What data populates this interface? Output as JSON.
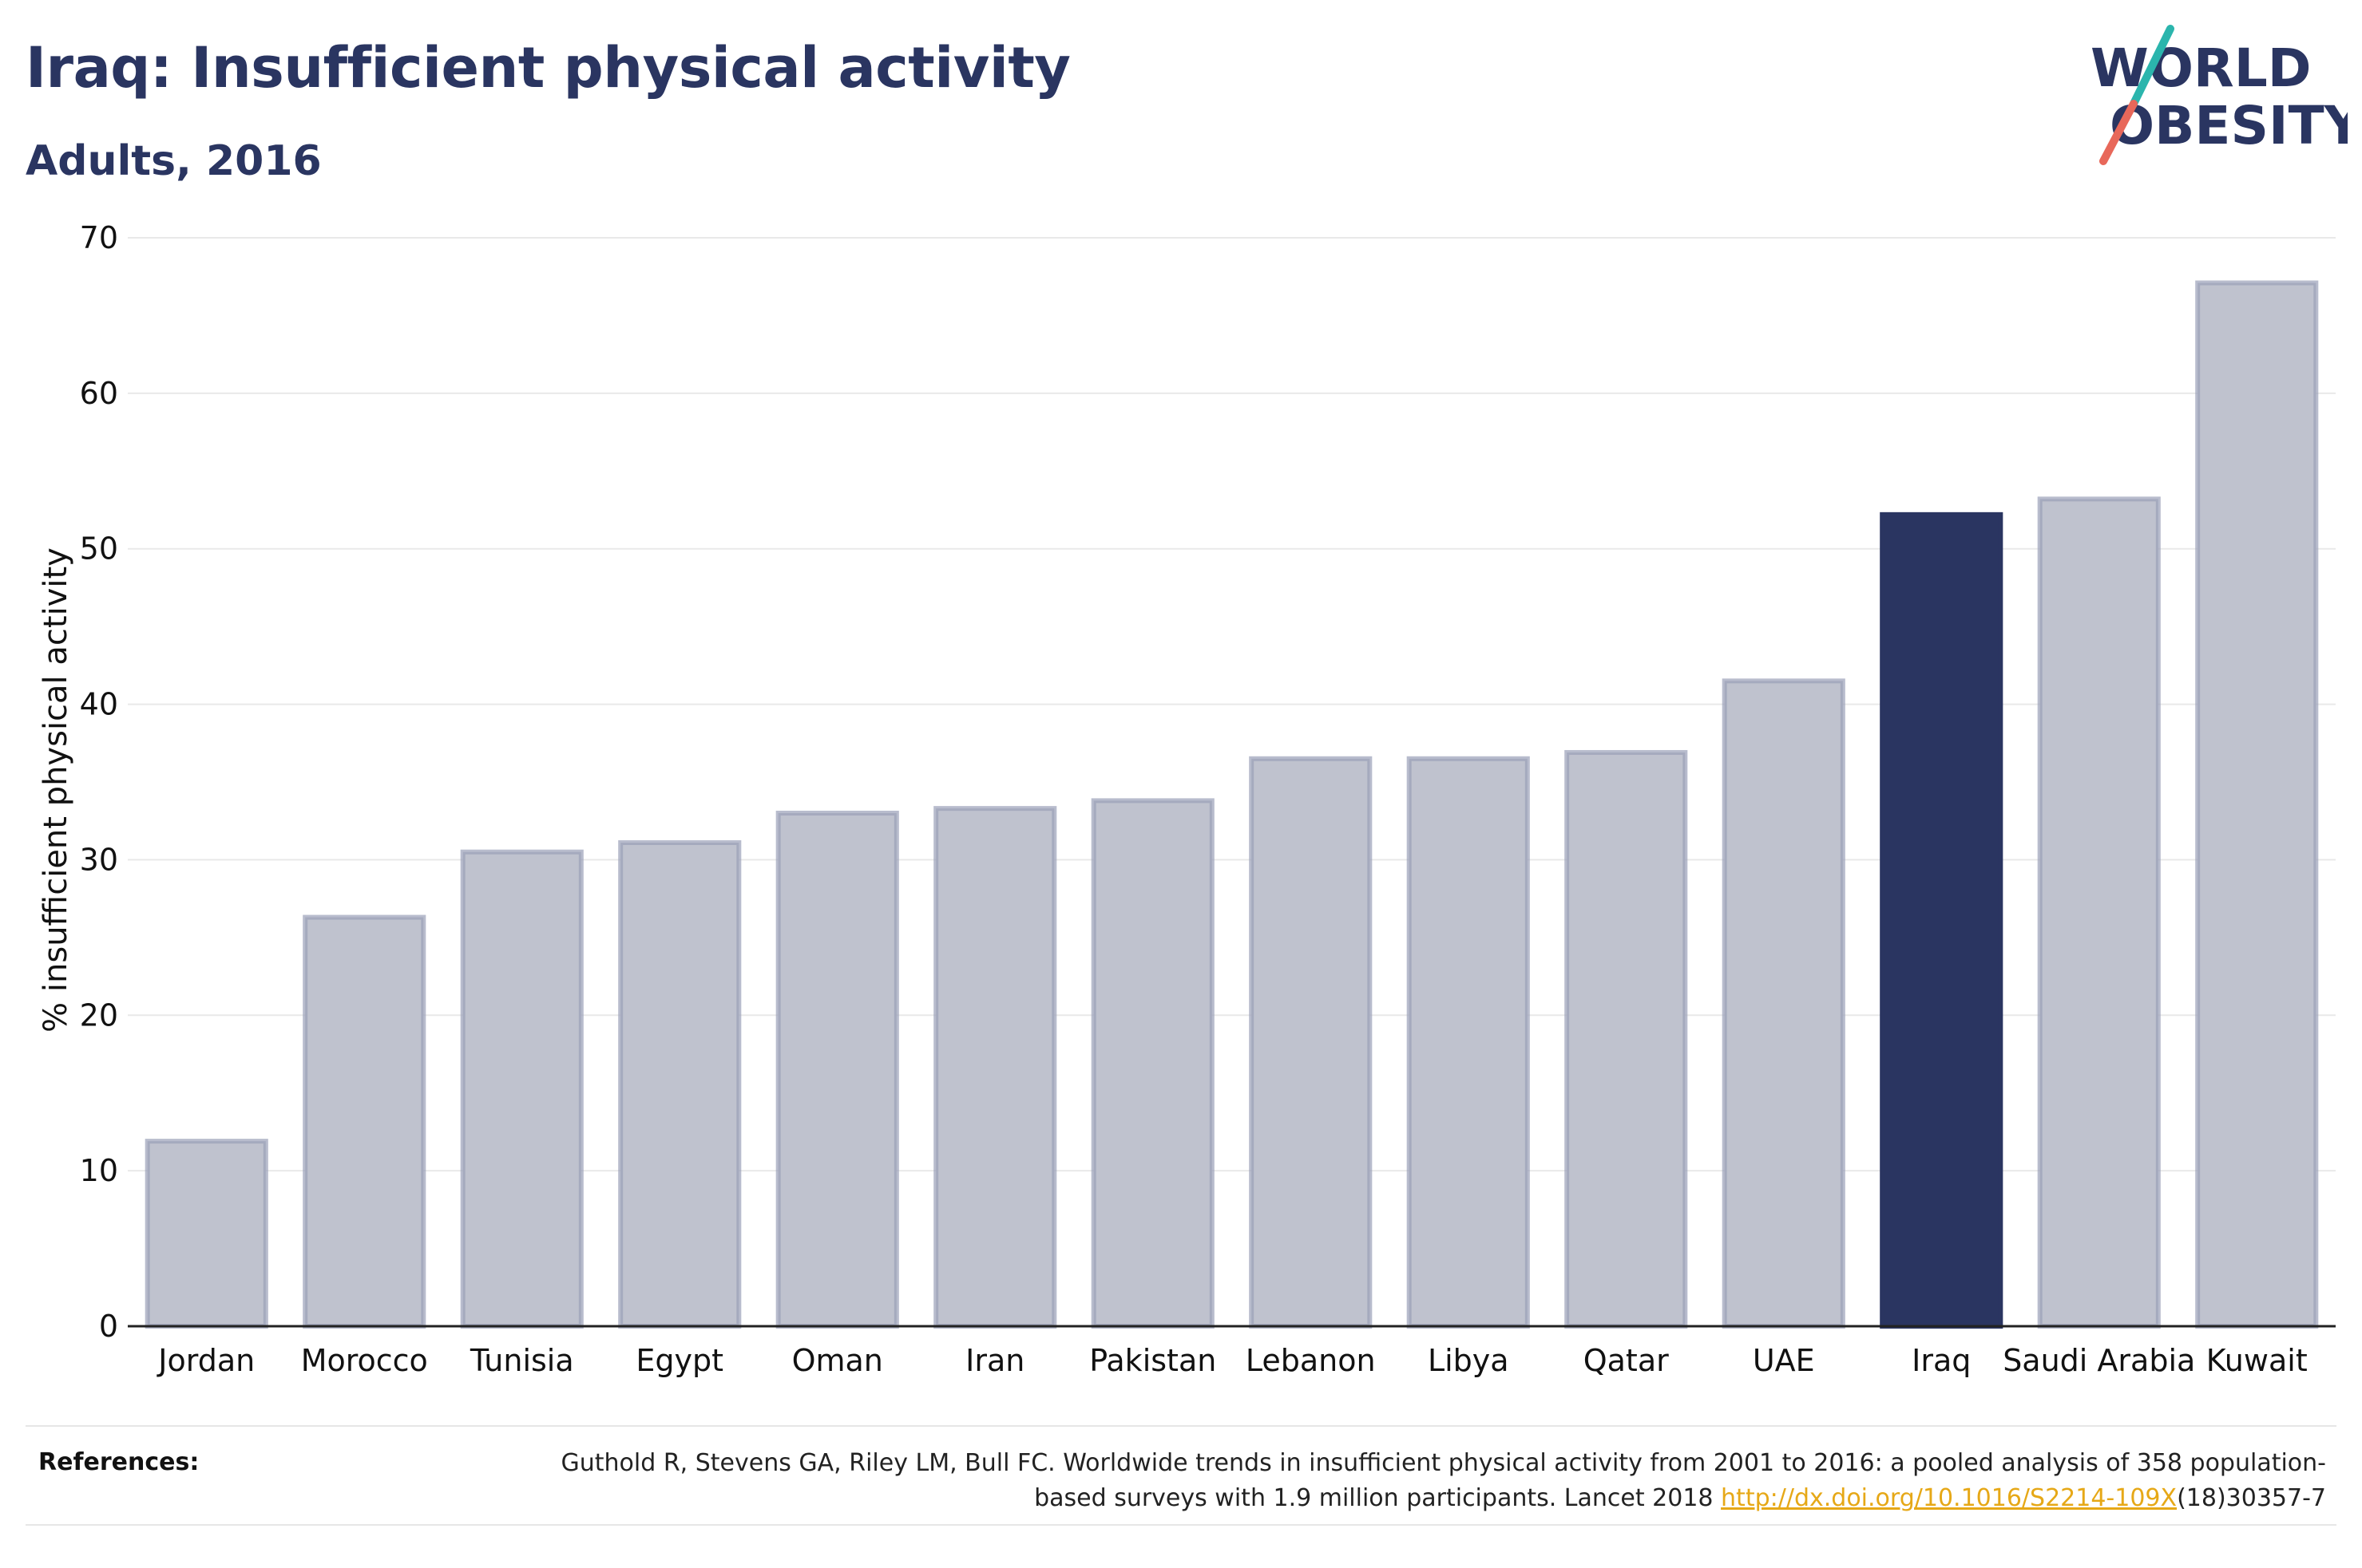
{
  "title": "Iraq: Insufficient physical activity",
  "subtitle": "Adults, 2016",
  "logo": {
    "line1": "W",
    "line1b": "RLD",
    "line2a": "O",
    "line2b": "BESITY"
  },
  "colors": {
    "highlight": "#2a3561",
    "bar": "#bfc2ce",
    "bar_stroke": "#9aa0b8",
    "accent": "#e6a817",
    "logo_teal": "#2bb5ad",
    "logo_red": "#e8685a"
  },
  "chart_data": {
    "type": "bar",
    "ylabel": "% insufficient physical activity",
    "ylim": [
      0,
      70
    ],
    "yticks": [
      0,
      10,
      20,
      30,
      40,
      50,
      60,
      70
    ],
    "grid": true,
    "highlight": "Iraq",
    "categories": [
      "Jordan",
      "Morocco",
      "Tunisia",
      "Egypt",
      "Oman",
      "Iran",
      "Pakistan",
      "Lebanon",
      "Libya",
      "Qatar",
      "UAE",
      "Iraq",
      "Saudi Arabia",
      "Kuwait"
    ],
    "values": [
      11.9,
      26.3,
      30.5,
      31.1,
      33.0,
      33.3,
      33.8,
      36.5,
      36.5,
      36.9,
      41.5,
      52.2,
      53.2,
      67.1
    ]
  },
  "references": {
    "label": "References:",
    "text_before": "Guthold R, Stevens GA, Riley LM, Bull FC. Worldwide trends in insufficient physical activity from 2001 to 2016: a pooled analysis of 358 population-based surveys with 1.9 million participants. Lancet 2018 ",
    "link": "http://dx.doi.org/10.1016/S2214-109X",
    "text_after": "(18)30357-7"
  }
}
